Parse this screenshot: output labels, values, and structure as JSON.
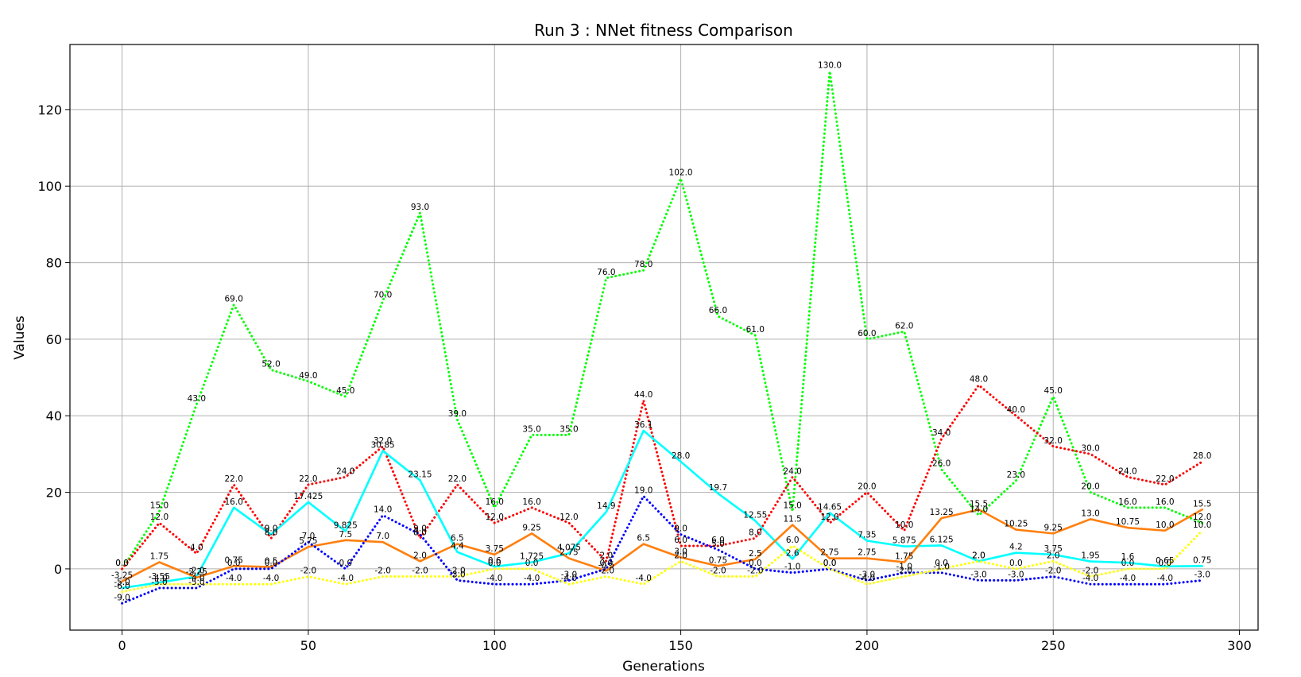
{
  "chart_data": {
    "type": "line",
    "title": "Run 3 : NNet fitness Comparison",
    "xlabel": "Generations",
    "ylabel": "Values",
    "xlim": [
      -14,
      305
    ],
    "ylim": [
      -16,
      137
    ],
    "xticks": [
      0,
      50,
      100,
      150,
      200,
      250,
      300
    ],
    "yticks": [
      0,
      20,
      40,
      60,
      80,
      100,
      120
    ],
    "grid": true,
    "x": [
      0,
      10,
      20,
      30,
      40,
      50,
      60,
      70,
      80,
      90,
      100,
      110,
      120,
      130,
      140,
      150,
      160,
      170,
      180,
      190,
      200,
      210,
      220,
      230,
      240,
      250,
      260,
      270,
      280,
      290
    ],
    "series": [
      {
        "color": "#00ff00",
        "style": "dotted",
        "values": [
          0.0,
          15.0,
          43.0,
          69.0,
          52.0,
          49.0,
          45.0,
          70.0,
          93.0,
          39.0,
          16.0,
          35.0,
          35.0,
          76.0,
          78.0,
          102.0,
          66.0,
          61.0,
          15.0,
          130.0,
          60.0,
          62.0,
          26.0,
          14.0,
          23.0,
          45.0,
          20.0,
          16.0,
          16.0,
          12.0
        ]
      },
      {
        "color": "#ff0000",
        "style": "dotted",
        "values": [
          0.0,
          12.0,
          4.0,
          22.0,
          8.0,
          22.0,
          24.0,
          32.0,
          8.0,
          22.0,
          12.0,
          16.0,
          12.0,
          2.0,
          44.0,
          6.0,
          6.0,
          8.0,
          24.0,
          12.0,
          20.0,
          10.0,
          34.0,
          48.0,
          40.0,
          32.0,
          30.0,
          24.0,
          22.0,
          28.0
        ]
      },
      {
        "color": "#00ffff",
        "style": "solid",
        "values": [
          -5.0,
          -3.55,
          -2.0,
          16.0,
          9.0,
          17.425,
          9.825,
          30.85,
          23.15,
          4.4,
          0.6,
          1.725,
          4.075,
          14.9,
          36.1,
          28.0,
          19.7,
          12.55,
          2.6,
          14.65,
          7.35,
          5.875,
          6.125,
          2.0,
          4.2,
          3.75,
          1.95,
          1.6,
          0.65,
          0.75
        ]
      },
      {
        "color": "#ff7f0e",
        "style": "solid",
        "values": [
          -3.25,
          1.75,
          -2.25,
          0.75,
          0.5,
          5.75,
          7.5,
          7.0,
          2.0,
          6.5,
          3.75,
          9.25,
          2.75,
          -0.5,
          6.5,
          3.0,
          0.75,
          2.5,
          11.5,
          2.75,
          2.75,
          1.75,
          13.25,
          15.5,
          10.25,
          9.25,
          13.0,
          10.75,
          10.0,
          15.5
        ]
      },
      {
        "color": "#0000ff",
        "style": "dotted",
        "values": [
          -9.0,
          -5.0,
          -5.0,
          0.0,
          0.0,
          7.0,
          0.0,
          14.0,
          9.0,
          -3.0,
          -4.0,
          -4.0,
          -3.0,
          0.0,
          19.0,
          9.0,
          5.0,
          0.0,
          -1.0,
          0.0,
          -3.0,
          -1.0,
          -1.0,
          -3.0,
          -3.0,
          -2.0,
          -4.0,
          -4.0,
          -4.0,
          -3.0
        ]
      },
      {
        "color": "#ffff00",
        "style": "dotted",
        "values": [
          -6.0,
          -4.0,
          -4.0,
          -4.0,
          -4.0,
          -2.0,
          -4.0,
          -2.0,
          -2.0,
          -2.0,
          0.0,
          0.0,
          -4.0,
          -2.0,
          -4.0,
          2.0,
          -2.0,
          -2.0,
          6.0,
          0.0,
          -4.0,
          -2.0,
          0.0,
          2.0,
          0.0,
          2.0,
          -2.0,
          0.0,
          0.0,
          10.0
        ]
      }
    ]
  }
}
